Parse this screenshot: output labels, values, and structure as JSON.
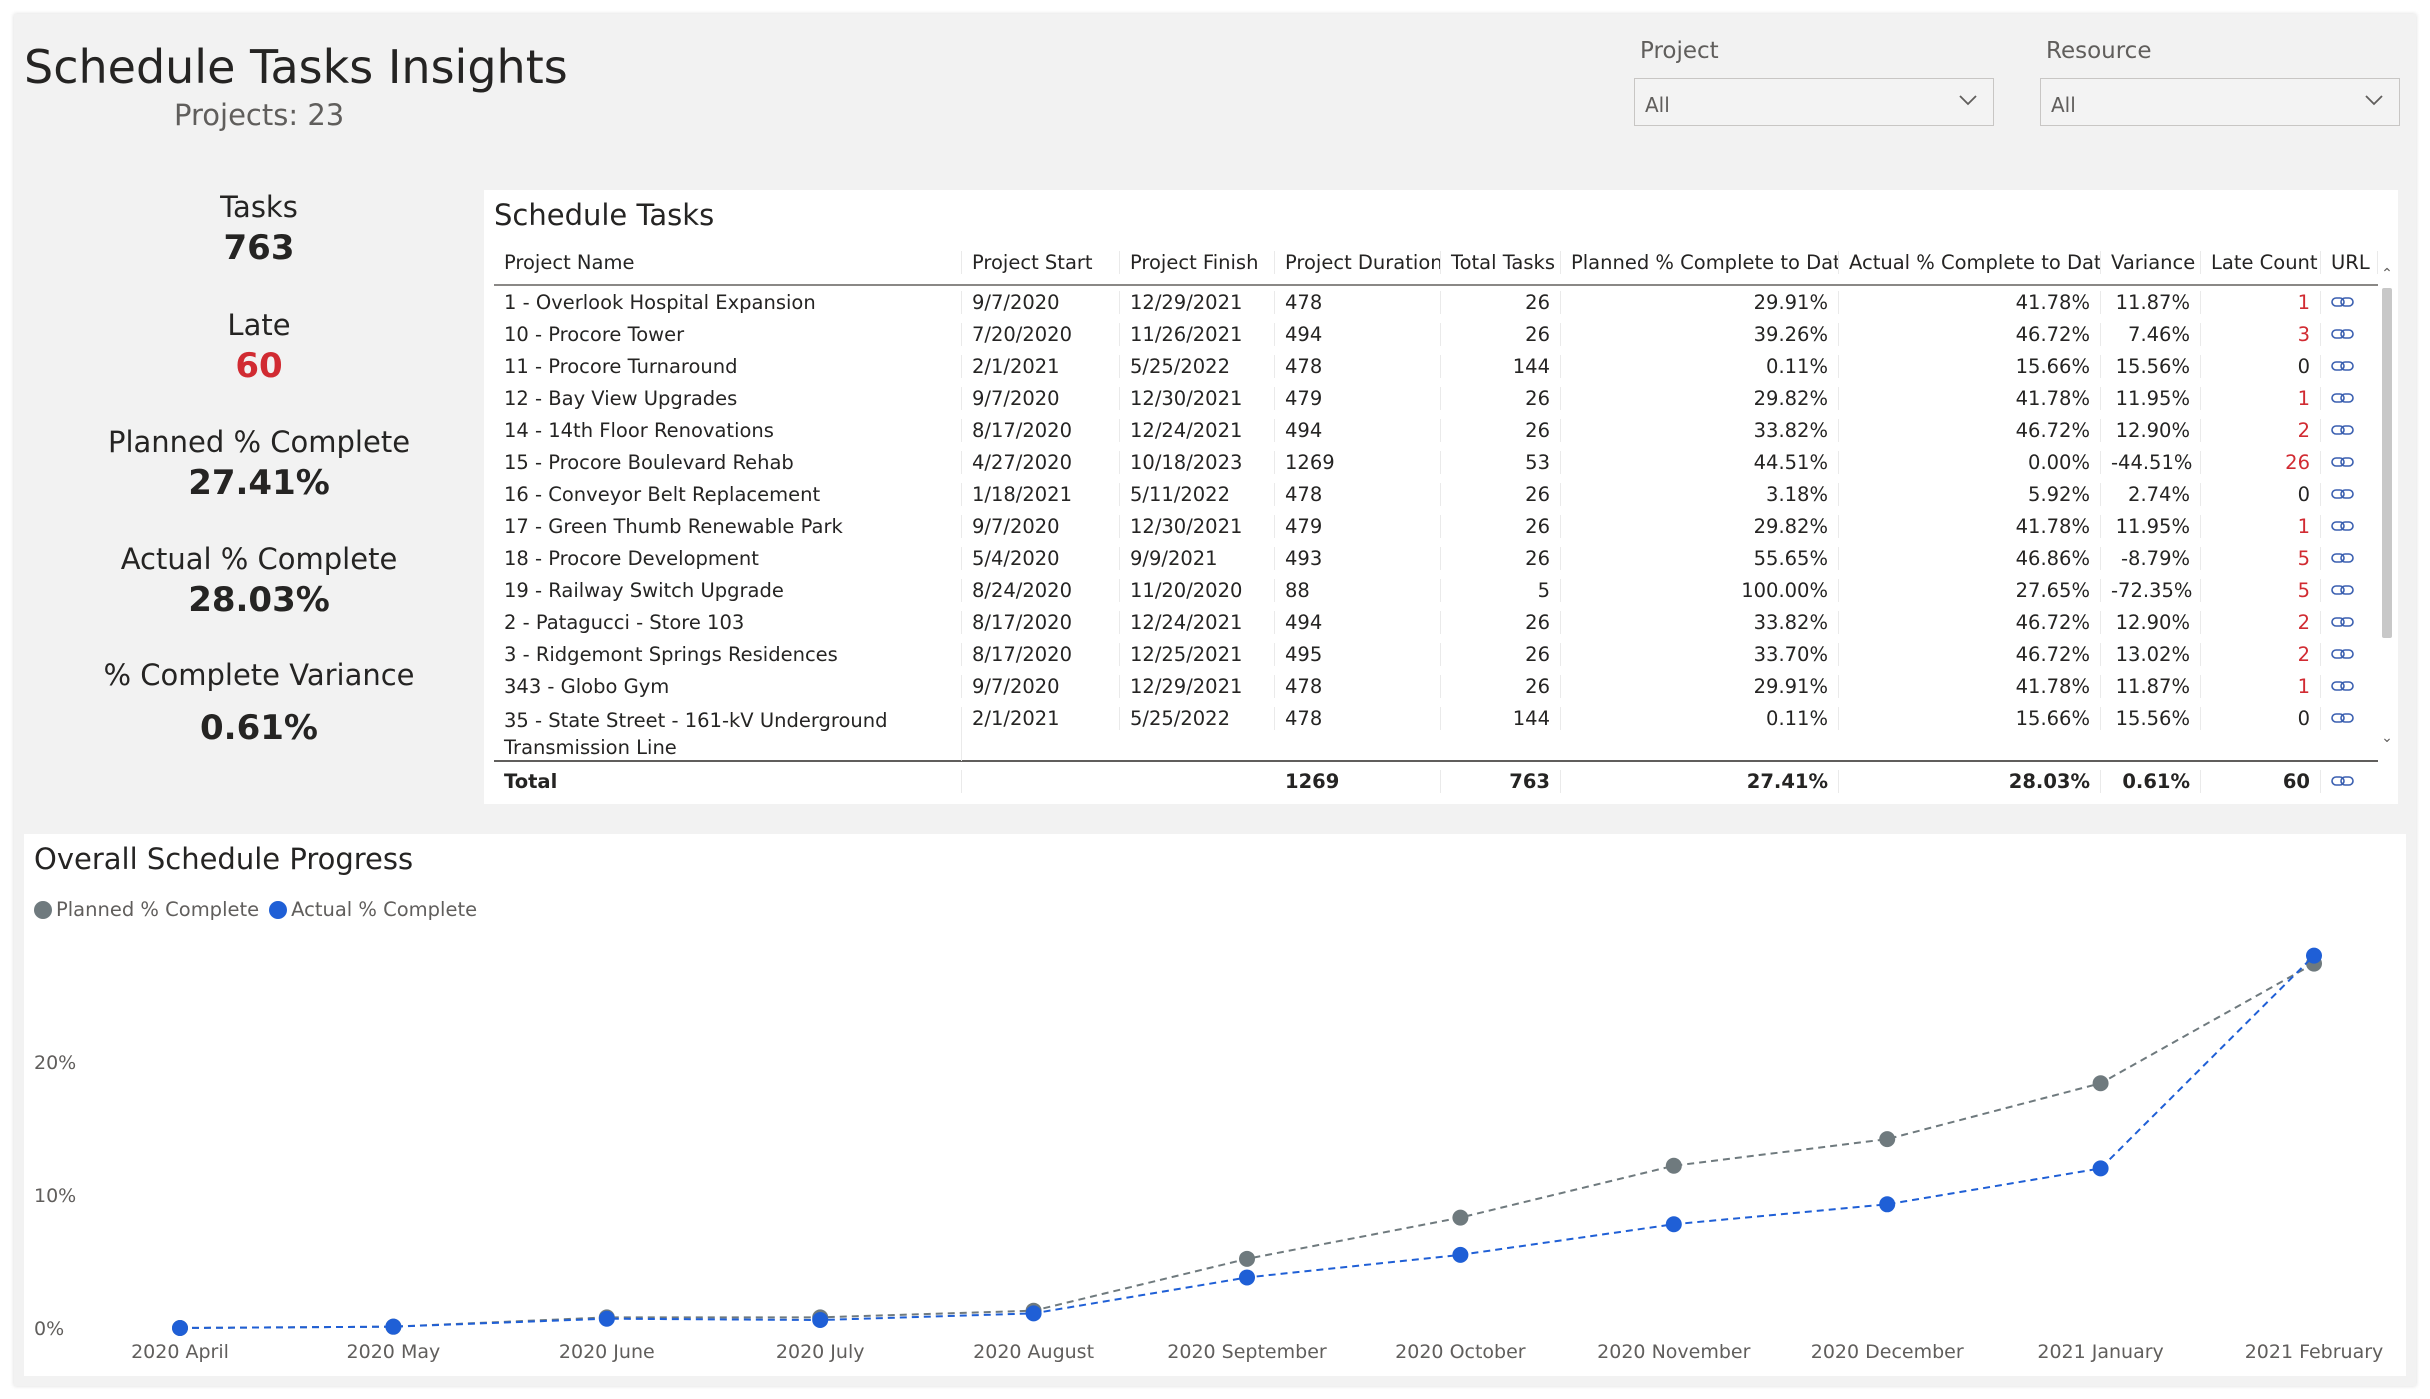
{
  "header": {
    "title": "Schedule Tasks Insights",
    "subtitle": "Projects: 23"
  },
  "slicers": [
    {
      "label": "Project",
      "value": "All"
    },
    {
      "label": "Resource",
      "value": "All"
    }
  ],
  "kpis": [
    {
      "label": "Tasks",
      "value": "763",
      "highlight": false
    },
    {
      "label": "Late",
      "value": "60",
      "highlight": true
    },
    {
      "label": "Planned % Complete",
      "value": "27.41%",
      "highlight": false
    },
    {
      "label": "Actual % Complete",
      "value": "28.03%",
      "highlight": false
    },
    {
      "label": "% Complete Variance",
      "value": "0.61%",
      "highlight": false
    }
  ],
  "table": {
    "title": "Schedule Tasks",
    "columns": [
      "Project Name",
      "Project Start",
      "Project Finish",
      "Project Duration",
      "Total Tasks",
      "Planned % Complete to Date",
      "Actual % Complete to Date",
      "Variance",
      "Late Count",
      "URL"
    ],
    "rows": [
      [
        "1 - Overlook Hospital Expansion",
        "9/7/2020",
        "12/29/2021",
        "478",
        "26",
        "29.91%",
        "41.78%",
        "11.87%",
        "1"
      ],
      [
        "10 - Procore Tower",
        "7/20/2020",
        "11/26/2021",
        "494",
        "26",
        "39.26%",
        "46.72%",
        "7.46%",
        "3"
      ],
      [
        "11 - Procore Turnaround",
        "2/1/2021",
        "5/25/2022",
        "478",
        "144",
        "0.11%",
        "15.66%",
        "15.56%",
        "0"
      ],
      [
        "12 - Bay View Upgrades",
        "9/7/2020",
        "12/30/2021",
        "479",
        "26",
        "29.82%",
        "41.78%",
        "11.95%",
        "1"
      ],
      [
        "14 - 14th Floor Renovations",
        "8/17/2020",
        "12/24/2021",
        "494",
        "26",
        "33.82%",
        "46.72%",
        "12.90%",
        "2"
      ],
      [
        "15 - Procore Boulevard Rehab",
        "4/27/2020",
        "10/18/2023",
        "1269",
        "53",
        "44.51%",
        "0.00%",
        "-44.51%",
        "26"
      ],
      [
        "16 - Conveyor Belt Replacement",
        "1/18/2021",
        "5/11/2022",
        "478",
        "26",
        "3.18%",
        "5.92%",
        "2.74%",
        "0"
      ],
      [
        "17 - Green Thumb Renewable Park",
        "9/7/2020",
        "12/30/2021",
        "479",
        "26",
        "29.82%",
        "41.78%",
        "11.95%",
        "1"
      ],
      [
        "18 - Procore Development",
        "5/4/2020",
        "9/9/2021",
        "493",
        "26",
        "55.65%",
        "46.86%",
        "-8.79%",
        "5"
      ],
      [
        "19 - Railway Switch Upgrade",
        "8/24/2020",
        "11/20/2020",
        "88",
        "5",
        "100.00%",
        "27.65%",
        "-72.35%",
        "5"
      ],
      [
        "2 - Patagucci - Store 103",
        "8/17/2020",
        "12/24/2021",
        "494",
        "26",
        "33.82%",
        "46.72%",
        "12.90%",
        "2"
      ],
      [
        "3 - Ridgemont Springs Residences",
        "8/17/2020",
        "12/25/2021",
        "495",
        "26",
        "33.70%",
        "46.72%",
        "13.02%",
        "2"
      ],
      [
        "343 - Globo Gym",
        "9/7/2020",
        "12/29/2021",
        "478",
        "26",
        "29.91%",
        "41.78%",
        "11.87%",
        "1"
      ],
      [
        "35 - State Street - 161-kV Underground Transmission Line",
        "2/1/2021",
        "5/25/2022",
        "478",
        "144",
        "0.11%",
        "15.66%",
        "15.56%",
        "0"
      ]
    ],
    "total": [
      "Total",
      "",
      "",
      "1269",
      "763",
      "27.41%",
      "28.03%",
      "0.61%",
      "60"
    ]
  },
  "colors": {
    "late": "#d12b32",
    "planned": "#6f7a7e",
    "actual": "#1f5fd6",
    "link": "#3a5fb0"
  },
  "chart_data": {
    "type": "line",
    "title": "Overall Schedule Progress",
    "x": [
      "2020 April",
      "2020 May",
      "2020 June",
      "2020 July",
      "2020 August",
      "2020 September",
      "2020 October",
      "2020 November",
      "2020 December",
      "2021 January",
      "2021 February"
    ],
    "series": [
      {
        "name": "Planned % Complete",
        "values": [
          0.0,
          0.1,
          0.8,
          0.8,
          1.3,
          5.2,
          8.3,
          12.2,
          14.2,
          18.4,
          27.4
        ]
      },
      {
        "name": "Actual % Complete",
        "values": [
          0.0,
          0.1,
          0.7,
          0.6,
          1.1,
          3.8,
          5.5,
          7.8,
          9.3,
          12.0,
          28.0
        ]
      }
    ],
    "y_ticks": [
      "0%",
      "10%",
      "20%"
    ],
    "ylim": [
      0,
      30
    ],
    "grid": false,
    "legend": "top-left"
  }
}
